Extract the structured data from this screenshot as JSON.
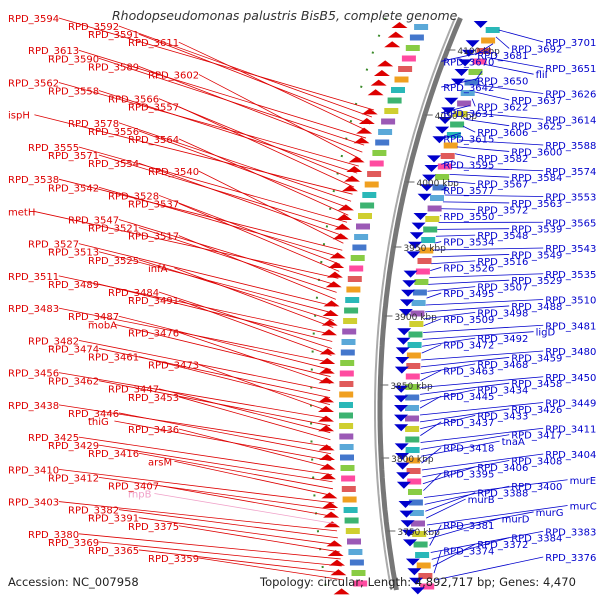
{
  "title": "Rhodopseudomonas palustris BisB5, complete genome",
  "footer": {
    "accession": "Accession: NC_007958",
    "summary": "Topology: circular; Length: 4,892,717 bp; Genes: 4,470"
  },
  "colors": {
    "minus_strand": "#dd0000",
    "plus_strand": "#0000cc",
    "rna": "#f0a0c8",
    "backbone": "#888888"
  },
  "ticks": [
    "4100 kbp",
    "4050 kbp",
    "4000 kbp",
    "3950 kbp",
    "3900 kbp",
    "3850 kbp",
    "3800 kbp",
    "3750 kbp"
  ],
  "left_labels": [
    "RPD_3594",
    "RPD_3592",
    "RPD_3591",
    "RPD_3611",
    "RPD_3613",
    "RPD_3590",
    "RPD_3589",
    "RPD_3602",
    "RPD_3562",
    "RPD_3558",
    "RPD_3566",
    "RPD_3557",
    "ispH",
    "RPD_3578",
    "RPD_3556",
    "RPD_3564",
    "RPD_3555",
    "RPD_3571",
    "RPD_3554",
    "RPD_3540",
    "RPD_3538",
    "RPD_3542",
    "RPD_3528",
    "RPD_3537",
    "metH",
    "RPD_3547",
    "RPD_3521",
    "RPD_3517",
    "RPD_3527",
    "RPD_3513",
    "RPD_3525",
    "infA",
    "RPD_3511",
    "RPD_3489",
    "RPD_3484",
    "RPD_3491",
    "RPD_3483",
    "RPD_3487",
    "mobA",
    "RPD_3476",
    "RPD_3482",
    "RPD_3474",
    "RPD_3461",
    "RPD_3473",
    "RPD_3456",
    "RPD_3462",
    "RPD_3447",
    "RPD_3453",
    "RPD_3438",
    "RPD_3446",
    "thiG",
    "RPD_3436",
    "RPD_3425",
    "RPD_3429",
    "RPD_3416",
    "arsM",
    "RPD_3410",
    "RPD_3412",
    "RPD_3407",
    "rnpB",
    "RPD_3403",
    "RPD_3382",
    "RPD_3391",
    "RPD_3375",
    "RPD_3380",
    "RPD_3369",
    "RPD_3365",
    "RPD_3359"
  ],
  "right_labels": [
    "RPD_3701",
    "RPD_3692",
    "RPD_3681",
    "RPD_3670",
    "RPD_3651",
    "fliI",
    "RPD_3650",
    "RPD_3642",
    "RPD_3626",
    "RPD_3637",
    "RPD_3622",
    "RPD_3631",
    "RPD_3614",
    "RPD_3625",
    "RPD_3606",
    "RPD_3615",
    "RPD_3588",
    "RPD_3600",
    "RPD_3582",
    "RPD_3595",
    "RPD_3574",
    "RPD_3584",
    "RPD_3567",
    "RPD_3577",
    "RPD_3553",
    "RPD_3563",
    "RPD_3572",
    "RPD_3550",
    "RPD_3565",
    "RPD_3539",
    "RPD_3548",
    "RPD_3534",
    "RPD_3543",
    "RPD_3549",
    "RPD_3516",
    "RPD_3526",
    "RPD_3535",
    "RPD_3529",
    "RPD_3507",
    "RPD_3495",
    "RPD_3510",
    "RPD_3488",
    "RPD_3498",
    "RPD_3509",
    "RPD_3481",
    "ligD",
    "RPD_3492",
    "RPD_3472",
    "RPD_3480",
    "RPD_3459",
    "RPD_3468",
    "RPD_3463",
    "RPD_3450",
    "RPD_3458",
    "RPD_3434",
    "RPD_3445",
    "RPD_3449",
    "RPD_3426",
    "RPD_3433",
    "RPD_3437",
    "RPD_3411",
    "RPD_3417",
    "tnaA",
    "RPD_3418",
    "RPD_3404",
    "RPD_3408",
    "RPD_3406",
    "RPD_3395",
    "murE",
    "RPD_3400",
    "RPD_3388",
    "murB",
    "murC",
    "murG",
    "murD",
    "RPD_3381",
    "RPD_3383",
    "RPD_3384",
    "RPD_3372",
    "RPD_3374",
    "RPD_3376"
  ]
}
